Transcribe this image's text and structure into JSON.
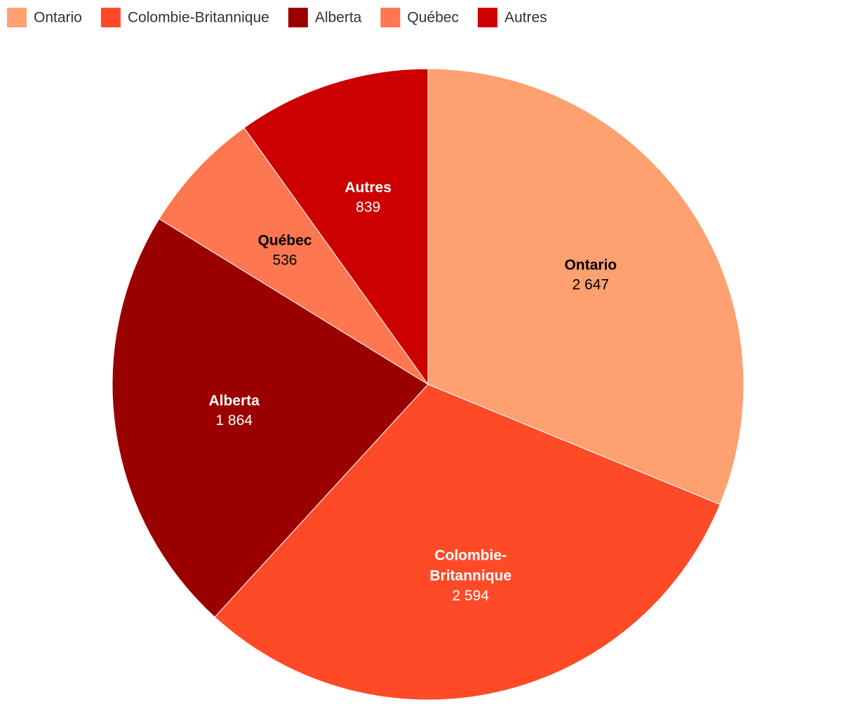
{
  "chart_data": {
    "type": "pie",
    "categories": [
      "Ontario",
      "Colombie-Britannique",
      "Alberta",
      "Québec",
      "Autres"
    ],
    "values": [
      2647,
      2594,
      1864,
      536,
      839
    ],
    "value_labels": [
      "2 647",
      "2 594",
      "1 864",
      "536",
      "839"
    ],
    "colors": [
      "#ffa070",
      "#ff4a28",
      "#9b0000",
      "#ff7750",
      "#cc0000"
    ],
    "legend": "top-left"
  }
}
